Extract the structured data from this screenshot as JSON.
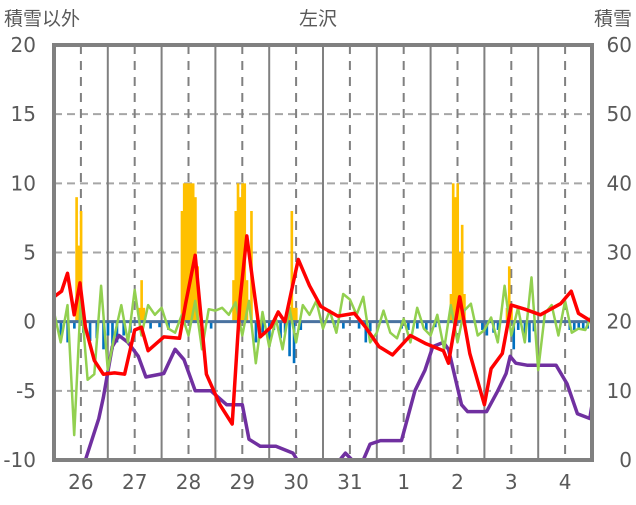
{
  "chart_data": {
    "type": "line",
    "title": "左沢",
    "ylabel_left": "積雪以外",
    "ylabel_right": "積雪",
    "ylim_left": [
      -10,
      20
    ],
    "ylim_right": [
      0,
      60
    ],
    "yticks_left": [
      "20",
      "15",
      "10",
      "5",
      "0",
      "-5",
      "-10"
    ],
    "yticks_right": [
      "60",
      "50",
      "40",
      "30",
      "20",
      "10",
      "0"
    ],
    "x_unit": "hours from start of day 26",
    "xlim": [
      0,
      240
    ],
    "xticks": [
      "26",
      "27",
      "28",
      "29",
      "30",
      "31",
      "1",
      "2",
      "3",
      "4"
    ],
    "grid": true,
    "series": [
      {
        "name": "red",
        "axis": "left",
        "color": "#ff0000",
        "type": "line",
        "points": [
          [
            0,
            1.8
          ],
          [
            3.4,
            2.2
          ],
          [
            6,
            3.5
          ],
          [
            9,
            0.5
          ],
          [
            11.6,
            2.8
          ],
          [
            14,
            -0.4
          ],
          [
            18,
            -2.8
          ],
          [
            22,
            -3.8
          ],
          [
            27,
            -3.7
          ],
          [
            31.5,
            -3.8
          ],
          [
            36,
            -0.6
          ],
          [
            39,
            -0.4
          ],
          [
            42,
            -2.1
          ],
          [
            49,
            -1.1
          ],
          [
            56,
            -1.2
          ],
          [
            58.7,
            1.3
          ],
          [
            63,
            4.8
          ],
          [
            68,
            -3.8
          ],
          [
            74,
            -6
          ],
          [
            79.5,
            -7.4
          ],
          [
            83,
            1.6
          ],
          [
            86,
            6.2
          ],
          [
            88.6,
            3
          ],
          [
            92,
            -1.1
          ],
          [
            96.7,
            -0.4
          ],
          [
            100,
            0.7
          ],
          [
            103,
            0
          ],
          [
            106.7,
            2.8
          ],
          [
            109,
            4.5
          ],
          [
            114,
            2.6
          ],
          [
            119,
            1.1
          ],
          [
            126.6,
            0.4
          ],
          [
            134,
            0.6
          ],
          [
            139,
            -0.4
          ],
          [
            145,
            -1.8
          ],
          [
            151,
            -2.4
          ],
          [
            159,
            -1
          ],
          [
            166,
            -1.6
          ],
          [
            173.7,
            -2.1
          ],
          [
            176,
            -3
          ],
          [
            181,
            1.8
          ],
          [
            185.5,
            -2.3
          ],
          [
            192,
            -6
          ],
          [
            195,
            -3.4
          ],
          [
            200,
            -2.3
          ],
          [
            204,
            1.2
          ],
          [
            210,
            0.9
          ],
          [
            217,
            0.5
          ],
          [
            226,
            1.3
          ],
          [
            230.7,
            2.2
          ],
          [
            234,
            0.6
          ],
          [
            240,
            0
          ]
        ]
      },
      {
        "name": "green",
        "axis": "left",
        "color": "#92d050",
        "type": "line",
        "points": [
          [
            0,
            0.7
          ],
          [
            3,
            -1.5
          ],
          [
            6,
            1.2
          ],
          [
            9,
            -8.2
          ],
          [
            12,
            1.8
          ],
          [
            15,
            -4.2
          ],
          [
            18,
            -3.8
          ],
          [
            21,
            2.6
          ],
          [
            24,
            -3.5
          ],
          [
            27,
            -1
          ],
          [
            30,
            1.2
          ],
          [
            33,
            -1.5
          ],
          [
            36,
            2.3
          ],
          [
            39,
            -1
          ],
          [
            42,
            1.2
          ],
          [
            45,
            0.5
          ],
          [
            48,
            1
          ],
          [
            51,
            -0.5
          ],
          [
            54,
            -0.8
          ],
          [
            57,
            0.5
          ],
          [
            60,
            -1
          ],
          [
            63,
            1.5
          ],
          [
            66,
            -2
          ],
          [
            69,
            0.9
          ],
          [
            72,
            0.8
          ],
          [
            75,
            1
          ],
          [
            78,
            0.5
          ],
          [
            81,
            1.4
          ],
          [
            84,
            -1
          ],
          [
            87,
            1.5
          ],
          [
            90,
            -3
          ],
          [
            93,
            0.7
          ],
          [
            96,
            -1.8
          ],
          [
            99,
            0.2
          ],
          [
            102,
            -2
          ],
          [
            105,
            1
          ],
          [
            108,
            -1.5
          ],
          [
            111,
            1.2
          ],
          [
            114,
            0.5
          ],
          [
            117,
            1.5
          ],
          [
            120,
            -0.5
          ],
          [
            123,
            0.8
          ],
          [
            126,
            -0.8
          ],
          [
            129,
            2
          ],
          [
            132,
            1.6
          ],
          [
            135,
            0.5
          ],
          [
            138,
            1.8
          ],
          [
            141,
            -1.5
          ],
          [
            144,
            -0.8
          ],
          [
            147,
            0.8
          ],
          [
            150,
            -0.8
          ],
          [
            153,
            -1.2
          ],
          [
            156,
            0.2
          ],
          [
            159,
            -1.5
          ],
          [
            162,
            1
          ],
          [
            165,
            -0.5
          ],
          [
            168,
            -1
          ],
          [
            171,
            0.5
          ],
          [
            174,
            -2
          ],
          [
            177,
            1.2
          ],
          [
            180,
            -1.5
          ],
          [
            183,
            0.8
          ],
          [
            186,
            1.3
          ],
          [
            189,
            -1
          ],
          [
            192,
            -0.6
          ],
          [
            195,
            0.3
          ],
          [
            198,
            -1.5
          ],
          [
            201,
            2.6
          ],
          [
            204,
            -1
          ],
          [
            207,
            1
          ],
          [
            210,
            -1.5
          ],
          [
            213,
            3.2
          ],
          [
            216,
            -3.5
          ],
          [
            219,
            0.6
          ],
          [
            222,
            1.2
          ],
          [
            225,
            -1
          ],
          [
            228,
            1.5
          ],
          [
            231,
            -0.8
          ],
          [
            234,
            -0.5
          ],
          [
            237,
            -0.6
          ],
          [
            240,
            0.5
          ]
        ]
      },
      {
        "name": "purple",
        "axis": "right",
        "color": "#7030a0",
        "type": "line",
        "points": [
          [
            0,
            0
          ],
          [
            14,
            0
          ],
          [
            20,
            6
          ],
          [
            22,
            9
          ],
          [
            26,
            16.4
          ],
          [
            29,
            18
          ],
          [
            33,
            17
          ],
          [
            37.6,
            15
          ],
          [
            41,
            12
          ],
          [
            49,
            12.5
          ],
          [
            54,
            16
          ],
          [
            58,
            14.5
          ],
          [
            63,
            10
          ],
          [
            70,
            10
          ],
          [
            77,
            8
          ],
          [
            84,
            8
          ],
          [
            87,
            3
          ],
          [
            92,
            2
          ],
          [
            99,
            2
          ],
          [
            106.6,
            1
          ],
          [
            108.5,
            0
          ],
          [
            127.5,
            0
          ],
          [
            130,
            1
          ],
          [
            133,
            0
          ],
          [
            138,
            0
          ],
          [
            141,
            2.3
          ],
          [
            145.6,
            2.8
          ],
          [
            155,
            2.8
          ],
          [
            161,
            10
          ],
          [
            165.5,
            13
          ],
          [
            169,
            16.4
          ],
          [
            173.7,
            17
          ],
          [
            176,
            16
          ],
          [
            181.8,
            8
          ],
          [
            184.5,
            7
          ],
          [
            193,
            7
          ],
          [
            198,
            10
          ],
          [
            201.7,
            12.5
          ],
          [
            203.5,
            15
          ],
          [
            206,
            14
          ],
          [
            211,
            13.7
          ],
          [
            224,
            13.7
          ],
          [
            228.9,
            11
          ],
          [
            233.5,
            6.7
          ],
          [
            239,
            6
          ],
          [
            240,
            8
          ]
        ]
      },
      {
        "name": "yellow",
        "axis": "left",
        "color": "#ffc000",
        "type": "bar",
        "points": [
          [
            10,
            9
          ],
          [
            11,
            5.5
          ],
          [
            12,
            8
          ],
          [
            38,
            1
          ],
          [
            39,
            3
          ],
          [
            40,
            1
          ],
          [
            57,
            8
          ],
          [
            58,
            10
          ],
          [
            59,
            10
          ],
          [
            60,
            10
          ],
          [
            61,
            10
          ],
          [
            62,
            10
          ],
          [
            63,
            9
          ],
          [
            64,
            4
          ],
          [
            80,
            3
          ],
          [
            81,
            8
          ],
          [
            82,
            10
          ],
          [
            83,
            9
          ],
          [
            84,
            10
          ],
          [
            85,
            10
          ],
          [
            86,
            3
          ],
          [
            88,
            8
          ],
          [
            105,
            1
          ],
          [
            106,
            8
          ],
          [
            107,
            1
          ],
          [
            108,
            1
          ],
          [
            177,
            2
          ],
          [
            178,
            10
          ],
          [
            179,
            9
          ],
          [
            180,
            10
          ],
          [
            181,
            5
          ],
          [
            182,
            7
          ],
          [
            183,
            2
          ],
          [
            202,
            1
          ],
          [
            203,
            4
          ],
          [
            204,
            1
          ]
        ]
      },
      {
        "name": "blue",
        "axis": "left",
        "color": "#0070c0",
        "type": "bar",
        "points": [
          [
            3,
            -1.2
          ],
          [
            6,
            -1.5
          ],
          [
            9,
            -0.5
          ],
          [
            13,
            -0.8
          ],
          [
            16,
            -1.4
          ],
          [
            19,
            -1.2
          ],
          [
            22,
            -2
          ],
          [
            24,
            -1
          ],
          [
            26,
            -2
          ],
          [
            28,
            -1.5
          ],
          [
            31,
            -1
          ],
          [
            34,
            -0.8
          ],
          [
            43,
            -0.5
          ],
          [
            47,
            -0.4
          ],
          [
            51,
            -0.6
          ],
          [
            66,
            -0.8
          ],
          [
            70,
            -0.5
          ],
          [
            90,
            -1.5
          ],
          [
            93,
            -0.8
          ],
          [
            96,
            -1.8
          ],
          [
            98,
            -0.6
          ],
          [
            101,
            -1.2
          ],
          [
            103,
            -0.8
          ],
          [
            105,
            -2.5
          ],
          [
            107,
            -3
          ],
          [
            110,
            -0.6
          ],
          [
            125,
            -0.4
          ],
          [
            129,
            -0.5
          ],
          [
            136,
            -0.5
          ],
          [
            139,
            -1.5
          ],
          [
            141,
            -0.7
          ],
          [
            155,
            -0.5
          ],
          [
            158,
            -0.6
          ],
          [
            162,
            -0.5
          ],
          [
            166,
            -0.6
          ],
          [
            170,
            -0.4
          ],
          [
            191,
            -0.6
          ],
          [
            193,
            -1
          ],
          [
            196,
            -0.8
          ],
          [
            198,
            -0.6
          ],
          [
            205,
            -2
          ],
          [
            207,
            -0.6
          ],
          [
            210,
            -1
          ],
          [
            212,
            -1.5
          ],
          [
            214,
            -0.7
          ],
          [
            230,
            -0.6
          ],
          [
            232,
            -0.6
          ],
          [
            234,
            -0.5
          ],
          [
            236,
            -0.6
          ],
          [
            238,
            -0.5
          ]
        ]
      }
    ]
  }
}
